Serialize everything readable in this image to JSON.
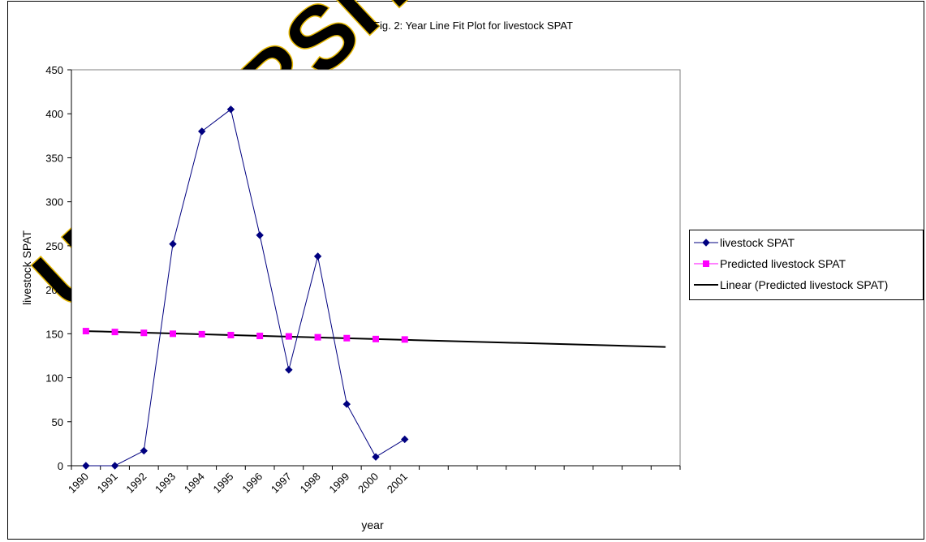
{
  "chart_data": {
    "type": "line",
    "title": "Fig. 2: Year Line Fit  Plot for livestock SPAT",
    "xlabel": "year",
    "ylabel": "livestock SPAT",
    "categories": [
      "1990",
      "1991",
      "1992",
      "1993",
      "1994",
      "1995",
      "1996",
      "1997",
      "1998",
      "1999",
      "2000",
      "2001"
    ],
    "ylim": [
      0,
      450
    ],
    "yticks": [
      0,
      50,
      100,
      150,
      200,
      250,
      300,
      350,
      400,
      450
    ],
    "grid": false,
    "legend_position": "right",
    "series": [
      {
        "name": "livestock SPAT",
        "color": "#000080",
        "marker": "diamond",
        "values": [
          0,
          0,
          17,
          252,
          380,
          405,
          262,
          109,
          238,
          70,
          10,
          30
        ]
      },
      {
        "name": "Predicted livestock SPAT",
        "color": "#ff00ff",
        "marker": "square",
        "line": false,
        "values": [
          153,
          152,
          151,
          150,
          149.5,
          148.5,
          147.5,
          147,
          146,
          145,
          144,
          143.5
        ]
      }
    ],
    "trendline": {
      "name": "Linear (Predicted livestock SPAT)",
      "color": "#000000",
      "start": 153,
      "end": 135
    }
  },
  "watermark": "UNIVERSITY"
}
